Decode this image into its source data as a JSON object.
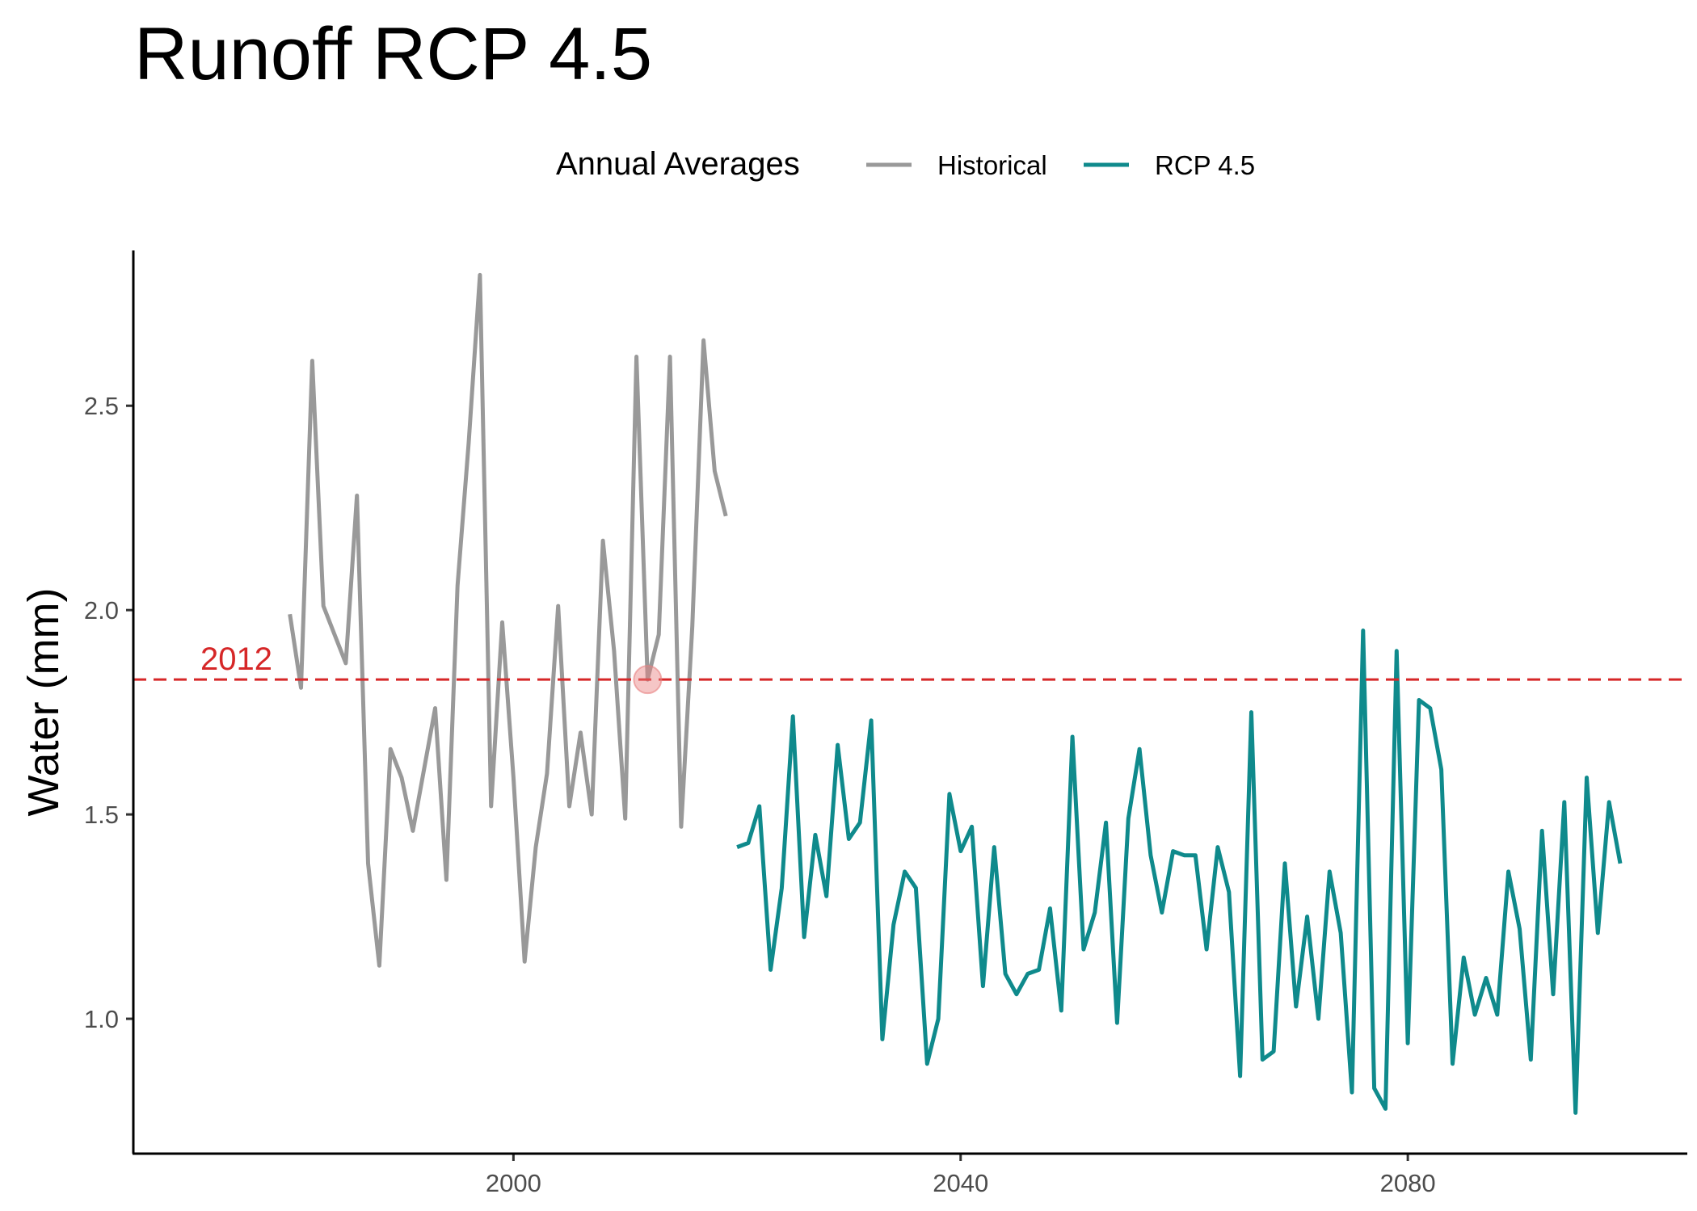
{
  "chart_data": {
    "type": "line",
    "title": "Runoff RCP 4.5",
    "xlabel": "",
    "ylabel": "Water (mm)",
    "xlim": [
      1966,
      2105
    ],
    "ylim": [
      0.67,
      2.88
    ],
    "x_ticks": [
      2000,
      2040,
      2080
    ],
    "y_ticks": [
      1.0,
      1.5,
      2.0,
      2.5
    ],
    "y_tick_labels": [
      "1.0",
      "1.5",
      "2.0",
      "2.5"
    ],
    "grid": false,
    "legend": {
      "title": "Annual Averages",
      "position": "top",
      "entries": [
        "Historical",
        "RCP 4.5"
      ]
    },
    "reference_line": {
      "y": 1.83,
      "label": "2012",
      "color": "#d62728",
      "style": "dashed"
    },
    "highlight_point": {
      "x": 2012,
      "y": 1.83
    },
    "series": [
      {
        "name": "Historical",
        "color": "#999999",
        "x": [
          1980,
          1981,
          1982,
          1983,
          1984,
          1985,
          1986,
          1987,
          1988,
          1989,
          1990,
          1991,
          1992,
          1993,
          1994,
          1995,
          1996,
          1997,
          1998,
          1999,
          2000,
          2001,
          2002,
          2003,
          2004,
          2005,
          2006,
          2007,
          2008,
          2009,
          2010,
          2011,
          2012,
          2013,
          2014,
          2015,
          2016,
          2017,
          2018,
          2019
        ],
        "values": [
          1.99,
          1.81,
          2.61,
          2.01,
          1.94,
          1.87,
          2.28,
          1.38,
          1.13,
          1.66,
          1.59,
          1.46,
          1.61,
          1.76,
          1.34,
          2.06,
          2.41,
          2.82,
          1.52,
          1.97,
          1.59,
          1.14,
          1.42,
          1.6,
          2.01,
          1.52,
          1.7,
          1.5,
          2.17,
          1.9,
          1.49,
          2.62,
          1.83,
          1.94,
          2.62,
          1.47,
          1.96,
          2.66,
          2.34,
          2.23
        ]
      },
      {
        "name": "RCP 4.5",
        "color": "#0f8a8c",
        "x": [
          2020,
          2021,
          2022,
          2023,
          2024,
          2025,
          2026,
          2027,
          2028,
          2029,
          2030,
          2031,
          2032,
          2033,
          2034,
          2035,
          2036,
          2037,
          2038,
          2039,
          2040,
          2041,
          2042,
          2043,
          2044,
          2045,
          2046,
          2047,
          2048,
          2049,
          2050,
          2051,
          2052,
          2053,
          2054,
          2055,
          2056,
          2057,
          2058,
          2059,
          2060,
          2061,
          2062,
          2063,
          2064,
          2065,
          2066,
          2067,
          2068,
          2069,
          2070,
          2071,
          2072,
          2073,
          2074,
          2075,
          2076,
          2077,
          2078,
          2079,
          2080,
          2081,
          2082,
          2083,
          2084,
          2085,
          2086,
          2087,
          2088,
          2089,
          2090,
          2091,
          2092,
          2093,
          2094,
          2095,
          2096,
          2097,
          2098,
          2099
        ],
        "values": [
          1.42,
          1.43,
          1.52,
          1.12,
          1.32,
          1.74,
          1.2,
          1.45,
          1.3,
          1.67,
          1.44,
          1.48,
          1.73,
          0.95,
          1.23,
          1.36,
          1.32,
          0.89,
          1.0,
          1.55,
          1.41,
          1.47,
          1.08,
          1.42,
          1.11,
          1.06,
          1.11,
          1.12,
          1.27,
          1.02,
          1.69,
          1.17,
          1.26,
          1.48,
          0.99,
          1.49,
          1.66,
          1.4,
          1.26,
          1.41,
          1.4,
          1.4,
          1.17,
          1.42,
          1.31,
          0.86,
          1.75,
          0.9,
          0.92,
          1.38,
          1.03,
          1.25,
          1.0,
          1.36,
          1.21,
          0.82,
          1.95,
          0.83,
          0.78,
          1.9,
          0.94,
          1.78,
          1.76,
          1.61,
          0.89,
          1.15,
          1.01,
          1.1,
          1.01,
          1.36,
          1.22,
          0.9,
          1.46,
          1.06,
          1.53,
          0.77,
          1.59,
          1.21,
          1.53,
          1.38
        ]
      }
    ]
  }
}
